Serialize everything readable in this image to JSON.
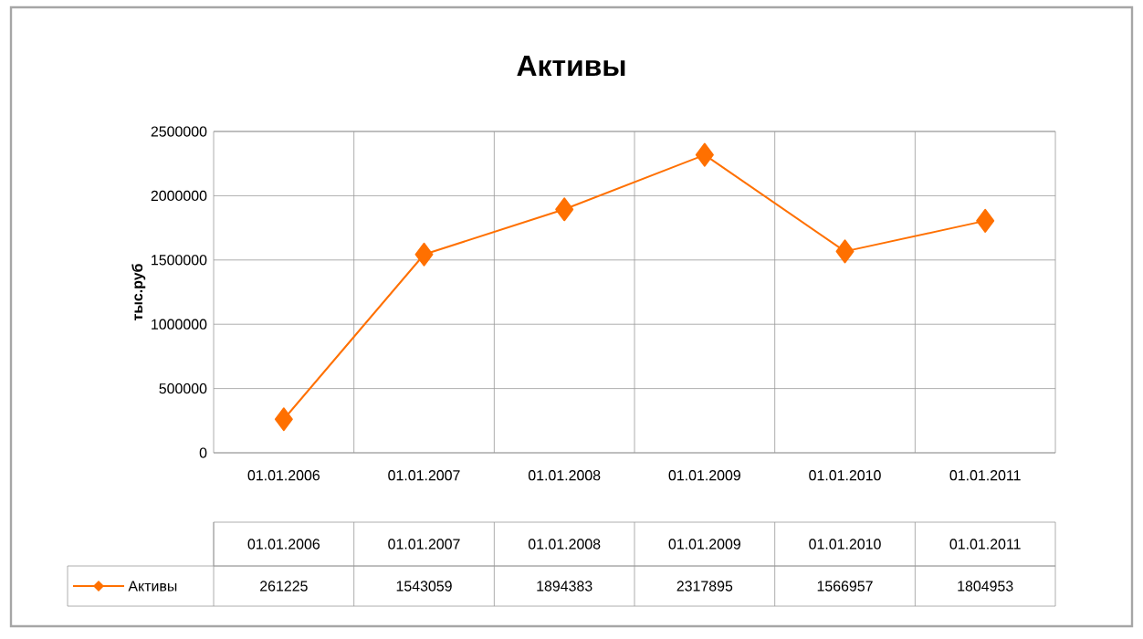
{
  "chart_data": {
    "type": "line",
    "title": "Активы",
    "ylabel": "тыс.руб",
    "categories": [
      "01.01.2006",
      "01.01.2007",
      "01.01.2008",
      "01.01.2009",
      "01.01.2010",
      "01.01.2011"
    ],
    "series": [
      {
        "name": "Активы",
        "color": "#ff7000",
        "values": [
          261225,
          1543059,
          1894383,
          2317895,
          1566957,
          1804953
        ]
      }
    ],
    "ylim": [
      0,
      2500000
    ],
    "yticks": [
      0,
      500000,
      1000000,
      1500000,
      2000000,
      2500000
    ],
    "grid": true,
    "marker": "diamond",
    "data_labels": true,
    "legend": "bottom"
  }
}
